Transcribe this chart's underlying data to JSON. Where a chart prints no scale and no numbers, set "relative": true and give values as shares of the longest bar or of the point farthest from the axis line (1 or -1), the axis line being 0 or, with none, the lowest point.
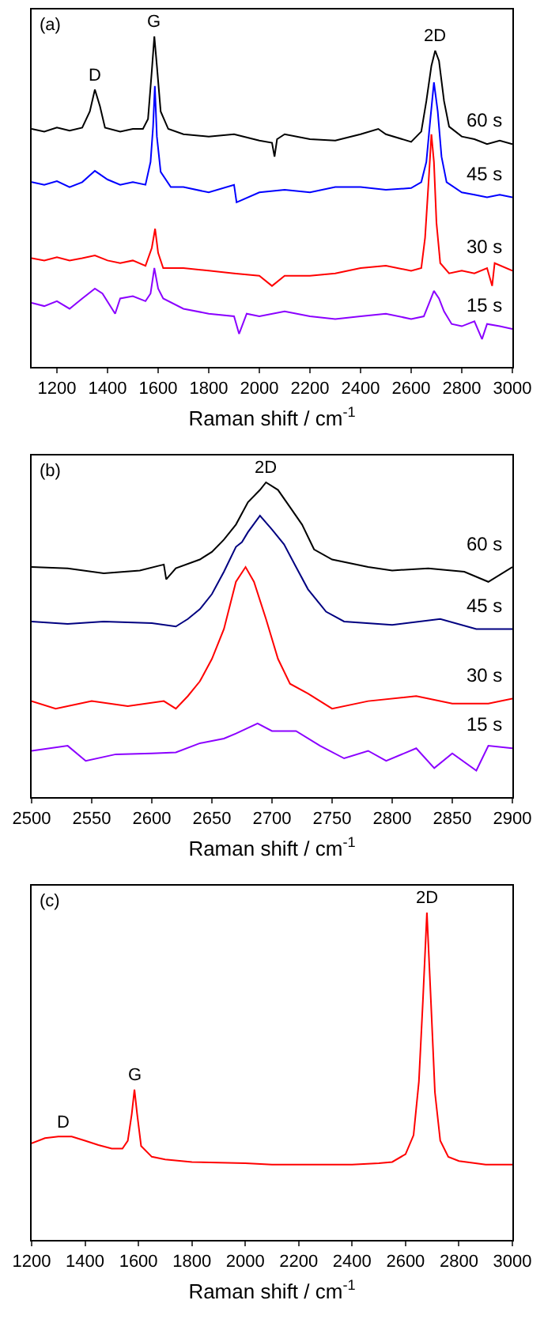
{
  "chart_data": [
    {
      "type": "line",
      "relative": true,
      "xlabel": "Raman shift / cm$^{-1}$",
      "xlim": [
        1100,
        3000
      ],
      "xticks": [
        1200,
        1400,
        1600,
        1800,
        2000,
        2200,
        2400,
        2600,
        2800,
        3000
      ],
      "legend": false,
      "grid": false,
      "annotations": [
        "(a)",
        {
          "text": "D",
          "x": 1350,
          "y": 0.839
        },
        {
          "text": "G",
          "x": 1585,
          "y": 1.0
        },
        {
          "text": "2D",
          "x": 2695,
          "y": 0.957
        }
      ],
      "series": [
        {
          "name": "60 s",
          "color": "#000000",
          "x": [
            1100,
            1150,
            1200,
            1250,
            1300,
            1330,
            1350,
            1370,
            1390,
            1450,
            1500,
            1540,
            1560,
            1575,
            1585,
            1595,
            1610,
            1640,
            1700,
            1800,
            1900,
            2000,
            2050,
            2060,
            2070,
            2100,
            2200,
            2300,
            2400,
            2470,
            2500,
            2600,
            2640,
            2660,
            2680,
            2695,
            2710,
            2730,
            2750,
            2800,
            2850,
            2900,
            2950,
            3000
          ],
          "values": [
            0.72,
            0.712,
            0.724,
            0.715,
            0.724,
            0.773,
            0.839,
            0.789,
            0.724,
            0.712,
            0.72,
            0.72,
            0.75,
            0.896,
            1.0,
            0.911,
            0.773,
            0.72,
            0.704,
            0.697,
            0.704,
            0.685,
            0.678,
            0.636,
            0.689,
            0.704,
            0.689,
            0.685,
            0.704,
            0.72,
            0.704,
            0.681,
            0.712,
            0.804,
            0.911,
            0.957,
            0.926,
            0.804,
            0.727,
            0.697,
            0.689,
            0.674,
            0.685,
            0.674
          ]
        },
        {
          "name": "45 s",
          "color": "#0000ff",
          "x": [
            1100,
            1150,
            1200,
            1250,
            1300,
            1350,
            1400,
            1450,
            1500,
            1550,
            1570,
            1580,
            1587,
            1595,
            1610,
            1650,
            1700,
            1800,
            1900,
            1910,
            2000,
            2100,
            2200,
            2300,
            2400,
            2500,
            2600,
            2640,
            2660,
            2675,
            2690,
            2705,
            2720,
            2740,
            2800,
            2850,
            2900,
            2950,
            3000
          ],
          "values": [
            0.559,
            0.551,
            0.562,
            0.544,
            0.559,
            0.593,
            0.567,
            0.551,
            0.559,
            0.551,
            0.62,
            0.727,
            0.85,
            0.697,
            0.59,
            0.544,
            0.544,
            0.528,
            0.551,
            0.498,
            0.528,
            0.536,
            0.528,
            0.544,
            0.544,
            0.536,
            0.541,
            0.559,
            0.62,
            0.743,
            0.861,
            0.773,
            0.636,
            0.559,
            0.528,
            0.521,
            0.513,
            0.521,
            0.513
          ]
        },
        {
          "name": "30 s",
          "color": "#ff0000",
          "x": [
            1100,
            1150,
            1200,
            1250,
            1300,
            1350,
            1400,
            1450,
            1500,
            1550,
            1575,
            1588,
            1600,
            1620,
            1700,
            1800,
            1900,
            2000,
            2050,
            2100,
            2200,
            2300,
            2400,
            2500,
            2600,
            2640,
            2655,
            2670,
            2680,
            2690,
            2700,
            2715,
            2750,
            2800,
            2850,
            2900,
            2920,
            2930,
            3000
          ],
          "values": [
            0.329,
            0.322,
            0.332,
            0.322,
            0.329,
            0.337,
            0.322,
            0.314,
            0.322,
            0.306,
            0.36,
            0.418,
            0.345,
            0.299,
            0.299,
            0.291,
            0.283,
            0.276,
            0.245,
            0.276,
            0.276,
            0.283,
            0.299,
            0.306,
            0.291,
            0.299,
            0.391,
            0.574,
            0.704,
            0.62,
            0.436,
            0.314,
            0.283,
            0.291,
            0.283,
            0.299,
            0.245,
            0.314,
            0.291
          ]
        },
        {
          "name": "15 s",
          "color": "#8b00ff",
          "x": [
            1100,
            1150,
            1200,
            1250,
            1300,
            1350,
            1380,
            1430,
            1450,
            1500,
            1550,
            1570,
            1585,
            1600,
            1620,
            1700,
            1800,
            1900,
            1920,
            1950,
            2000,
            2100,
            2200,
            2300,
            2400,
            2500,
            2600,
            2650,
            2670,
            2690,
            2710,
            2730,
            2760,
            2800,
            2850,
            2880,
            2900,
            2950,
            3000
          ],
          "values": [
            0.194,
            0.184,
            0.199,
            0.176,
            0.207,
            0.237,
            0.222,
            0.161,
            0.207,
            0.214,
            0.199,
            0.222,
            0.299,
            0.237,
            0.207,
            0.176,
            0.161,
            0.153,
            0.1,
            0.161,
            0.153,
            0.168,
            0.153,
            0.145,
            0.153,
            0.161,
            0.145,
            0.153,
            0.191,
            0.23,
            0.207,
            0.168,
            0.13,
            0.123,
            0.138,
            0.084,
            0.13,
            0.123,
            0.115
          ]
        }
      ]
    },
    {
      "type": "line",
      "relative": true,
      "xlabel": "Raman shift / cm$^{-1}$",
      "xlim": [
        2500,
        2900
      ],
      "xticks": [
        2500,
        2550,
        2600,
        2650,
        2700,
        2750,
        2800,
        2850,
        2900
      ],
      "legend": false,
      "grid": false,
      "annotations": [
        "(b)",
        {
          "text": "2D",
          "x": 2695,
          "y": 1.0
        }
      ],
      "series": [
        {
          "name": "60 s",
          "color": "#000000",
          "x": [
            2500,
            2530,
            2560,
            2590,
            2610,
            2612,
            2620,
            2640,
            2650,
            2660,
            2670,
            2680,
            2690,
            2695,
            2705,
            2715,
            2725,
            2735,
            2750,
            2780,
            2800,
            2830,
            2860,
            2880,
            2900
          ],
          "values": [
            0.731,
            0.727,
            0.711,
            0.72,
            0.739,
            0.692,
            0.727,
            0.755,
            0.779,
            0.818,
            0.866,
            0.937,
            0.976,
            1.0,
            0.976,
            0.921,
            0.866,
            0.787,
            0.755,
            0.731,
            0.72,
            0.727,
            0.716,
            0.684,
            0.731
          ]
        },
        {
          "name": "45 s",
          "color": "#000080",
          "x": [
            2500,
            2530,
            2560,
            2600,
            2620,
            2630,
            2640,
            2650,
            2660,
            2670,
            2675,
            2680,
            2690,
            2700,
            2710,
            2720,
            2730,
            2745,
            2760,
            2800,
            2840,
            2870,
            2900
          ],
          "values": [
            0.558,
            0.55,
            0.558,
            0.553,
            0.542,
            0.566,
            0.597,
            0.645,
            0.716,
            0.795,
            0.81,
            0.842,
            0.894,
            0.85,
            0.803,
            0.731,
            0.66,
            0.589,
            0.558,
            0.547,
            0.566,
            0.534,
            0.534
          ]
        },
        {
          "name": "30 s",
          "color": "#ff0000",
          "x": [
            2500,
            2520,
            2550,
            2580,
            2610,
            2620,
            2630,
            2640,
            2650,
            2660,
            2670,
            2678,
            2685,
            2695,
            2705,
            2715,
            2730,
            2750,
            2780,
            2820,
            2850,
            2880,
            2900
          ],
          "values": [
            0.305,
            0.281,
            0.305,
            0.289,
            0.305,
            0.281,
            0.321,
            0.368,
            0.439,
            0.534,
            0.684,
            0.731,
            0.684,
            0.566,
            0.439,
            0.36,
            0.329,
            0.281,
            0.305,
            0.321,
            0.297,
            0.297,
            0.313
          ]
        },
        {
          "name": "15 s",
          "color": "#8b00ff",
          "x": [
            2500,
            2530,
            2545,
            2570,
            2600,
            2620,
            2640,
            2660,
            2670,
            2688,
            2700,
            2720,
            2740,
            2760,
            2780,
            2795,
            2820,
            2835,
            2850,
            2870,
            2880,
            2900
          ],
          "values": [
            0.147,
            0.163,
            0.115,
            0.136,
            0.139,
            0.142,
            0.171,
            0.186,
            0.202,
            0.234,
            0.21,
            0.21,
            0.163,
            0.123,
            0.147,
            0.115,
            0.155,
            0.092,
            0.139,
            0.084,
            0.163,
            0.155
          ]
        }
      ]
    },
    {
      "type": "line",
      "relative": true,
      "xlabel": "Raman shift / cm$^{-1}$",
      "xlim": [
        1200,
        3000
      ],
      "xticks": [
        1200,
        1400,
        1600,
        1800,
        2000,
        2200,
        2400,
        2600,
        2800,
        3000
      ],
      "legend": false,
      "grid": false,
      "annotations": [
        "(c)",
        {
          "text": "D",
          "x": 1320,
          "y": 0.316
        },
        {
          "text": "G",
          "x": 1585,
          "y": 0.459
        },
        {
          "text": "2D",
          "x": 2680,
          "y": 1.0
        }
      ],
      "series": [
        {
          "color": "#ff0000",
          "x": [
            1200,
            1250,
            1300,
            1350,
            1400,
            1450,
            1500,
            1540,
            1560,
            1575,
            1585,
            1595,
            1610,
            1650,
            1700,
            1800,
            2000,
            2100,
            2400,
            2500,
            2550,
            2600,
            2630,
            2650,
            2665,
            2680,
            2695,
            2710,
            2730,
            2760,
            2800,
            2900,
            3000
          ],
          "values": [
            0.295,
            0.311,
            0.316,
            0.316,
            0.303,
            0.29,
            0.279,
            0.279,
            0.303,
            0.385,
            0.459,
            0.385,
            0.287,
            0.254,
            0.246,
            0.238,
            0.234,
            0.23,
            0.23,
            0.234,
            0.238,
            0.262,
            0.32,
            0.484,
            0.73,
            1.0,
            0.73,
            0.451,
            0.303,
            0.254,
            0.241,
            0.23,
            0.23
          ]
        }
      ]
    }
  ]
}
